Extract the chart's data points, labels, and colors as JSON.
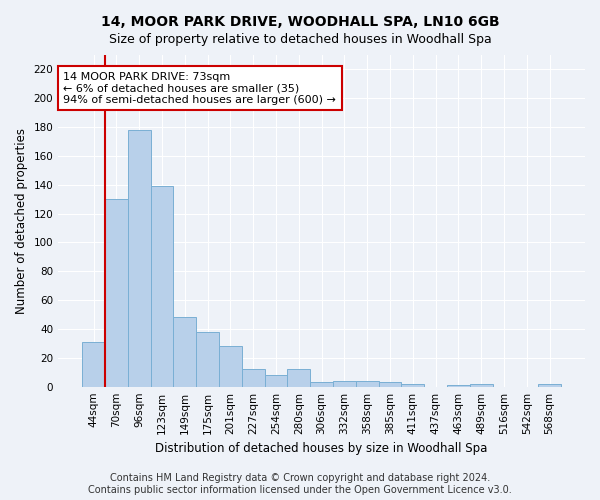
{
  "title1": "14, MOOR PARK DRIVE, WOODHALL SPA, LN10 6GB",
  "title2": "Size of property relative to detached houses in Woodhall Spa",
  "xlabel": "Distribution of detached houses by size in Woodhall Spa",
  "ylabel": "Number of detached properties",
  "categories": [
    "44sqm",
    "70sqm",
    "96sqm",
    "123sqm",
    "149sqm",
    "175sqm",
    "201sqm",
    "227sqm",
    "254sqm",
    "280sqm",
    "306sqm",
    "332sqm",
    "358sqm",
    "385sqm",
    "411sqm",
    "437sqm",
    "463sqm",
    "489sqm",
    "516sqm",
    "542sqm",
    "568sqm"
  ],
  "values": [
    31,
    130,
    178,
    139,
    48,
    38,
    28,
    12,
    8,
    12,
    3,
    4,
    4,
    3,
    2,
    0,
    1,
    2,
    0,
    0,
    2
  ],
  "bar_color": "#b8d0ea",
  "bar_edge_color": "#7aafd4",
  "marker_label": "14 MOOR PARK DRIVE: 73sqm",
  "annotation_line1": "← 6% of detached houses are smaller (35)",
  "annotation_line2": "94% of semi-detached houses are larger (600) →",
  "annotation_box_color": "#ffffff",
  "annotation_box_edge": "#cc0000",
  "vline_color": "#cc0000",
  "ylim": [
    0,
    230
  ],
  "yticks": [
    0,
    20,
    40,
    60,
    80,
    100,
    120,
    140,
    160,
    180,
    200,
    220
  ],
  "footer1": "Contains HM Land Registry data © Crown copyright and database right 2024.",
  "footer2": "Contains public sector information licensed under the Open Government Licence v3.0.",
  "background_color": "#eef2f8",
  "grid_color": "#ffffff",
  "title1_fontsize": 10,
  "title2_fontsize": 9,
  "xlabel_fontsize": 8.5,
  "ylabel_fontsize": 8.5,
  "tick_fontsize": 7.5,
  "footer_fontsize": 7,
  "annot_fontsize": 8
}
